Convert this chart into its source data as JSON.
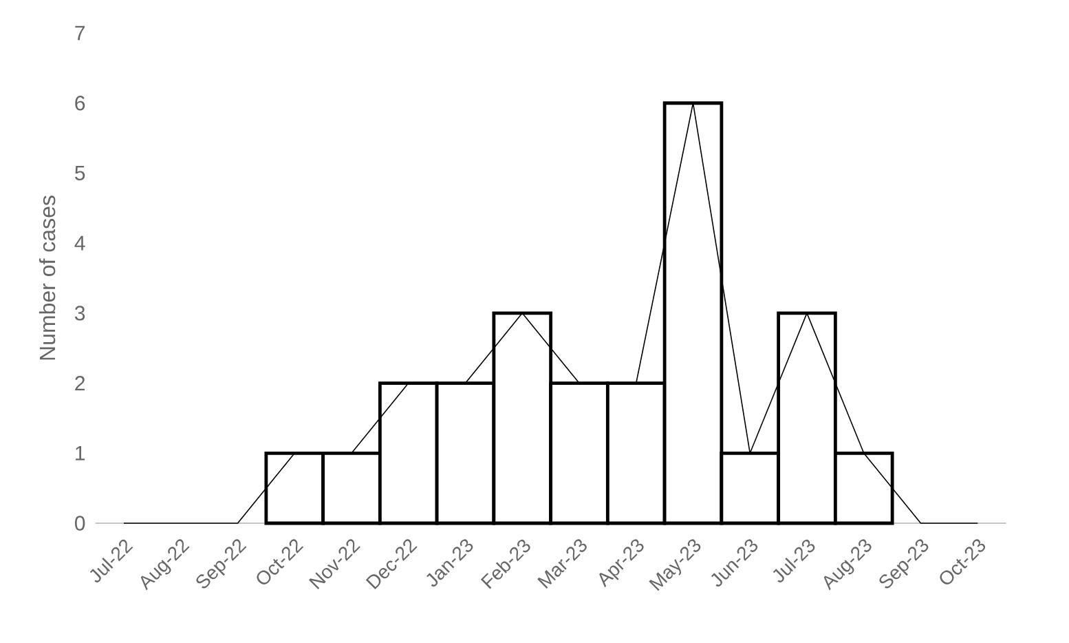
{
  "chart_data": {
    "type": "bar",
    "ylabel": "Number of cases",
    "categories": [
      "Jul-22",
      "Aug-22",
      "Sep-22",
      "Oct-22",
      "Nov-22",
      "Dec-22",
      "Jan-23",
      "Feb-23",
      "Mar-23",
      "Apr-23",
      "May-23",
      "Jun-23",
      "Jul-23",
      "Aug-23",
      "Sep-23",
      "Oct-23"
    ],
    "series": [
      {
        "color": "#ffffff",
        "values": [
          0,
          0,
          0,
          1,
          1,
          2,
          2,
          3,
          2,
          2,
          6,
          1,
          3,
          1,
          0,
          0
        ]
      },
      {
        "type": "line",
        "color": "#000000",
        "values": [
          0,
          0,
          0,
          1,
          1,
          2,
          2,
          3,
          2,
          2,
          6,
          1,
          3,
          1,
          0,
          0
        ]
      }
    ],
    "ylim": [
      0,
      7
    ],
    "yticks": [
      0,
      1,
      2,
      3,
      4,
      5,
      6,
      7
    ]
  }
}
